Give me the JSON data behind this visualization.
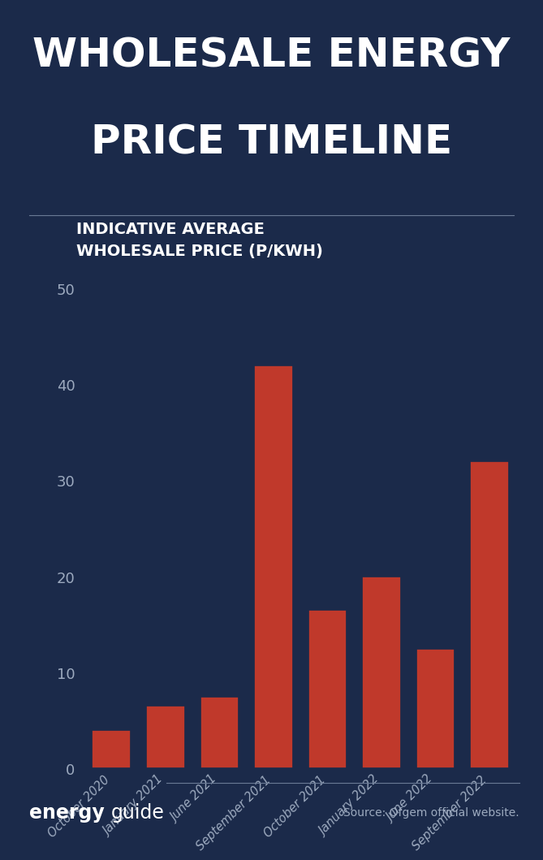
{
  "title_line1": "WHOLESALE ENERGY",
  "title_line2": "PRICE TIMELINE",
  "subtitle_line1": "INDICATIVE AVERAGE",
  "subtitle_line2": "WHOLESALE PRICE (P/KWH)",
  "categories": [
    "October 2020",
    "January 2021",
    "June 2021",
    "September 2021",
    "October 2021",
    "January 2022",
    "June 2022",
    "September 2022"
  ],
  "values": [
    4.0,
    6.5,
    7.5,
    42.0,
    16.5,
    20.0,
    12.5,
    32.0
  ],
  "bar_color": "#c0392b",
  "background_color": "#1b2a4a",
  "text_color": "#ffffff",
  "tick_color": "#9daabf",
  "divider_color": "#6a7a95",
  "yticks": [
    0,
    10,
    20,
    30,
    40,
    50
  ],
  "ylim": [
    0,
    55
  ],
  "brand_bold": "energy",
  "brand_light": "guide",
  "source_text": "Source: Ofgem official website.",
  "title_fontsize": 36,
  "subtitle_fontsize": 14,
  "tick_fontsize": 13,
  "xtick_fontsize": 10.5,
  "footer_brand_fontsize": 17,
  "footer_source_fontsize": 10
}
